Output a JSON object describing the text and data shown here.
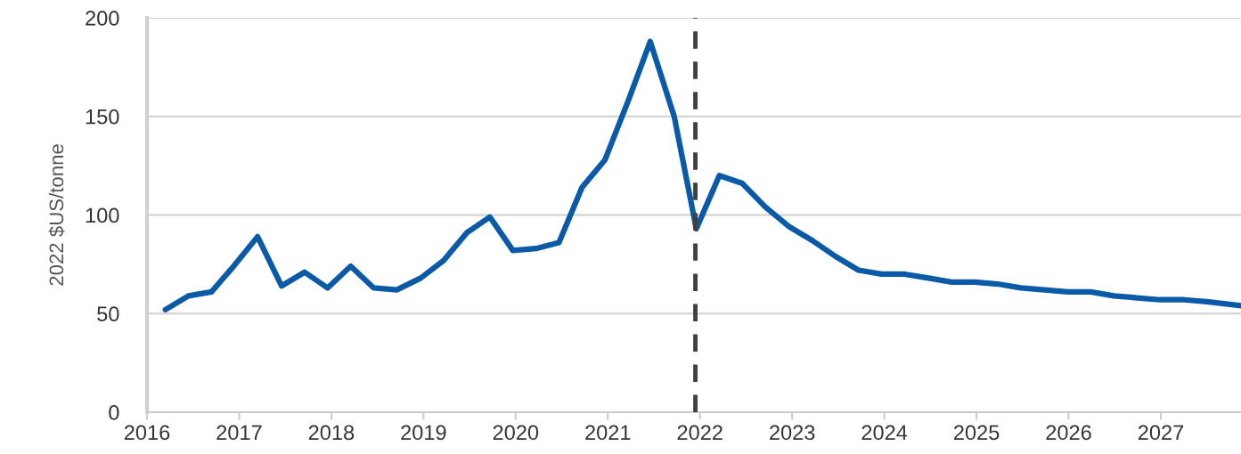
{
  "chart_data": {
    "type": "line",
    "ylabel": "2022 $US/tonne",
    "xlim": [
      2016,
      2027.87
    ],
    "xticks": [
      2016,
      2017,
      2018,
      2019,
      2020,
      2021,
      2022,
      2023,
      2024,
      2025,
      2026,
      2027
    ],
    "ylim": [
      0,
      200
    ],
    "yticks": [
      0,
      50,
      100,
      150,
      200
    ],
    "grid": "y",
    "line_style": "solid",
    "ref_lines": [
      {
        "axis": "x",
        "value": 2021.95,
        "color": "#404040",
        "line_style": "dashed"
      }
    ],
    "series": [
      {
        "color": "#0a5aa8",
        "x": [
          2016.2,
          2016.45,
          2016.7,
          2016.94,
          2017.2,
          2017.46,
          2017.71,
          2017.96,
          2018.21,
          2018.46,
          2018.71,
          2018.97,
          2019.22,
          2019.47,
          2019.72,
          2019.97,
          2020.22,
          2020.47,
          2020.72,
          2020.97,
          2021.23,
          2021.46,
          2021.72,
          2021.96,
          2022.21,
          2022.46,
          2022.71,
          2022.97,
          2023.22,
          2023.47,
          2023.72,
          2023.97,
          2024.22,
          2024.48,
          2024.73,
          2024.98,
          2025.23,
          2025.48,
          2025.74,
          2025.99,
          2026.24,
          2026.49,
          2026.74,
          2026.99,
          2027.25,
          2027.5,
          2027.87
        ],
        "values": [
          52,
          59,
          61,
          74,
          89,
          64,
          71,
          63,
          74,
          63,
          62,
          68,
          77,
          91,
          99,
          82,
          83,
          86,
          114,
          128,
          159,
          188,
          150,
          93,
          120,
          116,
          104,
          94,
          87,
          79,
          72,
          70,
          70,
          68,
          66,
          66,
          65,
          63,
          62,
          61,
          61,
          59,
          58,
          57,
          57,
          56,
          54
        ]
      }
    ]
  }
}
